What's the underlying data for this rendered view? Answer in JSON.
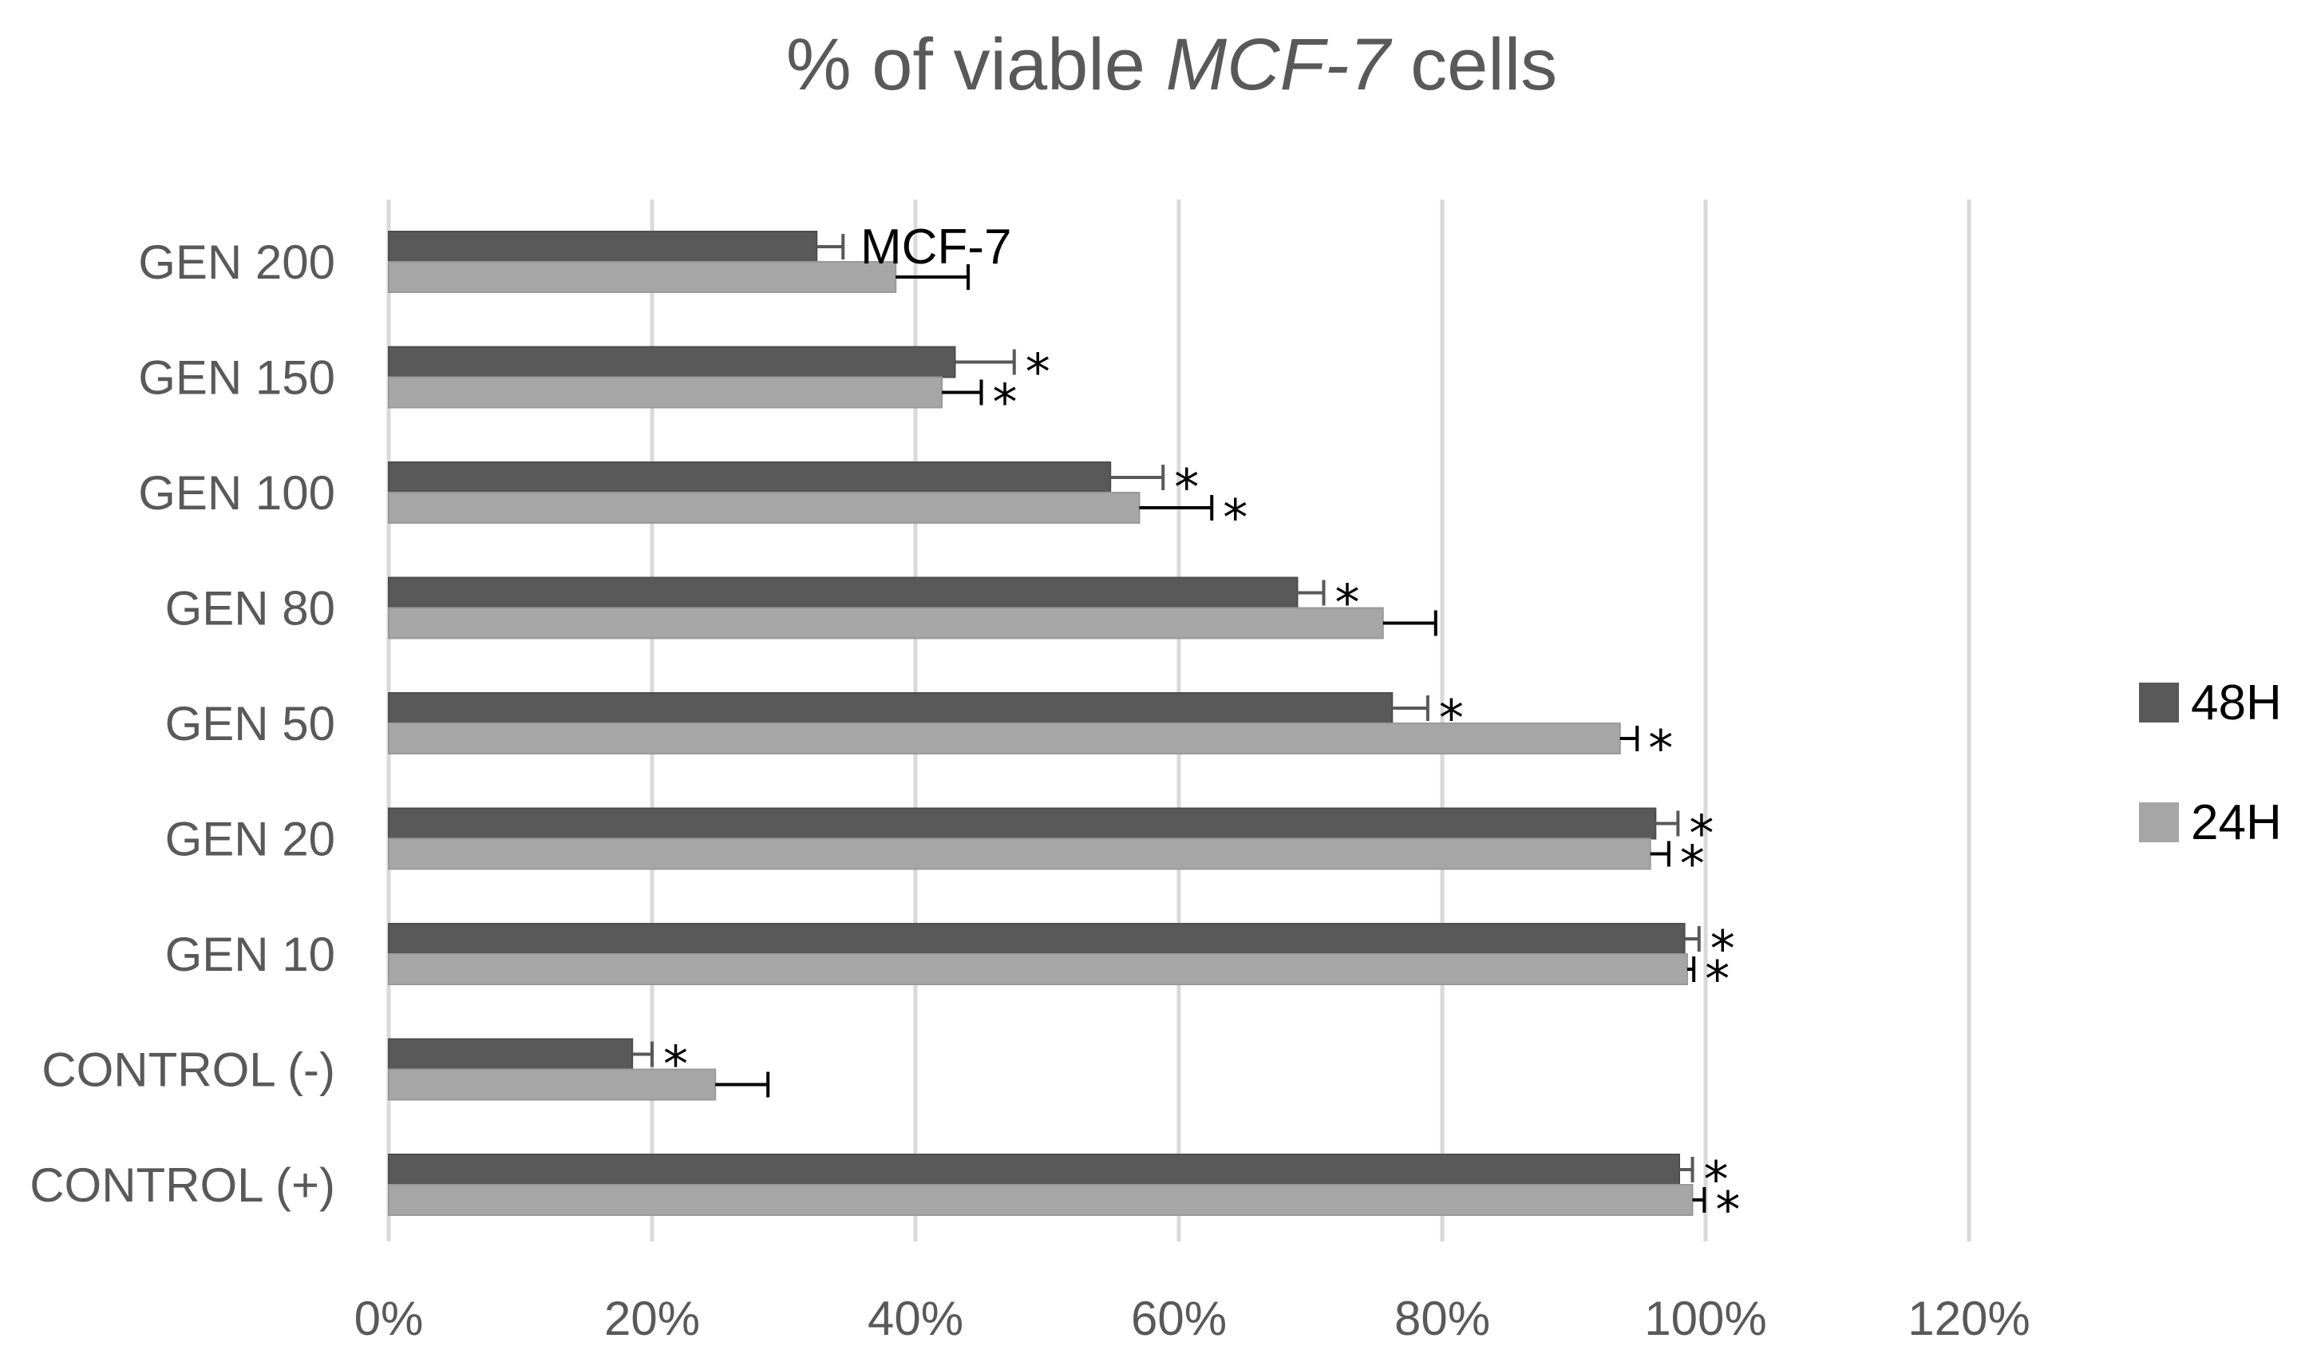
{
  "chart_data": {
    "type": "bar",
    "orientation": "horizontal",
    "title": {
      "prefix": "% of viable ",
      "italic": "MCF-7",
      "suffix": " cells"
    },
    "annotation": "MCF-7",
    "categories": [
      "GEN 200",
      "GEN 150",
      "GEN 100",
      "GEN 80",
      "GEN 50",
      "GEN 20",
      "GEN 10",
      "CONTROL (-)",
      "CONTROL (+)"
    ],
    "series": [
      {
        "name": "48H",
        "color": "#595959",
        "values": [
          32.5,
          43.0,
          54.8,
          69.0,
          76.2,
          96.2,
          98.4,
          18.5,
          98.0
        ],
        "errors": [
          2.0,
          4.5,
          4.0,
          2.0,
          2.7,
          1.7,
          1.1,
          1.5,
          1.0
        ],
        "significant": [
          false,
          true,
          true,
          true,
          true,
          true,
          true,
          true,
          true
        ],
        "star": "*"
      },
      {
        "name": "24H",
        "color": "#a6a6a6",
        "values": [
          38.5,
          42.0,
          57.0,
          75.5,
          93.5,
          95.8,
          98.6,
          24.8,
          99.0
        ],
        "errors": [
          5.5,
          3.0,
          5.5,
          4.0,
          1.3,
          1.4,
          0.5,
          4.0,
          0.9
        ],
        "significant": [
          false,
          true,
          true,
          false,
          true,
          true,
          true,
          false,
          true
        ],
        "star": "*"
      }
    ],
    "xlim": [
      0,
      120
    ],
    "xticks": [
      0,
      20,
      40,
      60,
      80,
      100,
      120
    ],
    "xtick_labels": [
      "0%",
      "20%",
      "40%",
      "60%",
      "80%",
      "100%",
      "120%"
    ],
    "grid": true,
    "legend": {
      "position": "right",
      "entries": [
        "48H",
        "24H"
      ]
    }
  }
}
